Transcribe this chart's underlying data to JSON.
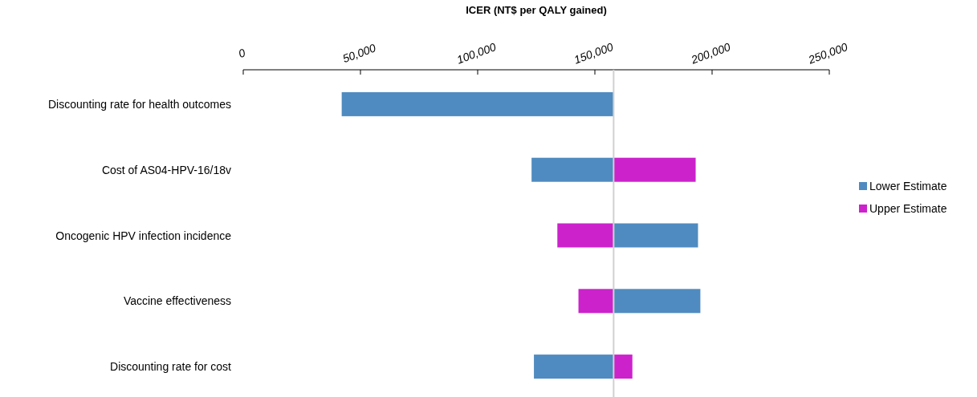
{
  "chart_data": {
    "type": "bar",
    "orientation": "horizontal",
    "xlabel": "ICER (NT$ per QALY gained)",
    "categories": [
      "Discounting rate for health outcomes",
      "Cost of AS04-HPV-16/18v",
      "Oncogenic HPV infection incidence",
      "Vaccine effectiveness",
      "Discounting rate for cost"
    ],
    "series": [
      {
        "name": "Lower Estimate",
        "color": "#4f8bc0",
        "base": [
          42000,
          123000,
          158000,
          158000,
          124000
        ],
        "values": [
          116000,
          35000,
          36000,
          37000,
          34000
        ]
      },
      {
        "name": "Upper Estimate",
        "color": "#cc22cc",
        "base": [
          null,
          158000,
          134000,
          143000,
          158000
        ],
        "values": [
          null,
          35000,
          24000,
          15000,
          8000
        ]
      }
    ],
    "xlim": [
      0,
      250000
    ],
    "xticks": [
      {
        "value": 0,
        "label": "0"
      },
      {
        "value": 50000,
        "label": "50,000"
      },
      {
        "value": 100000,
        "label": "100,000"
      },
      {
        "value": 150000,
        "label": "150,000"
      },
      {
        "value": 200000,
        "label": "200,000"
      },
      {
        "value": 250000,
        "label": "250,000"
      }
    ],
    "ref_lines": [
      {
        "axis": "x",
        "value": 158000,
        "color": "#d0d0d0"
      }
    ],
    "legend": "right"
  }
}
